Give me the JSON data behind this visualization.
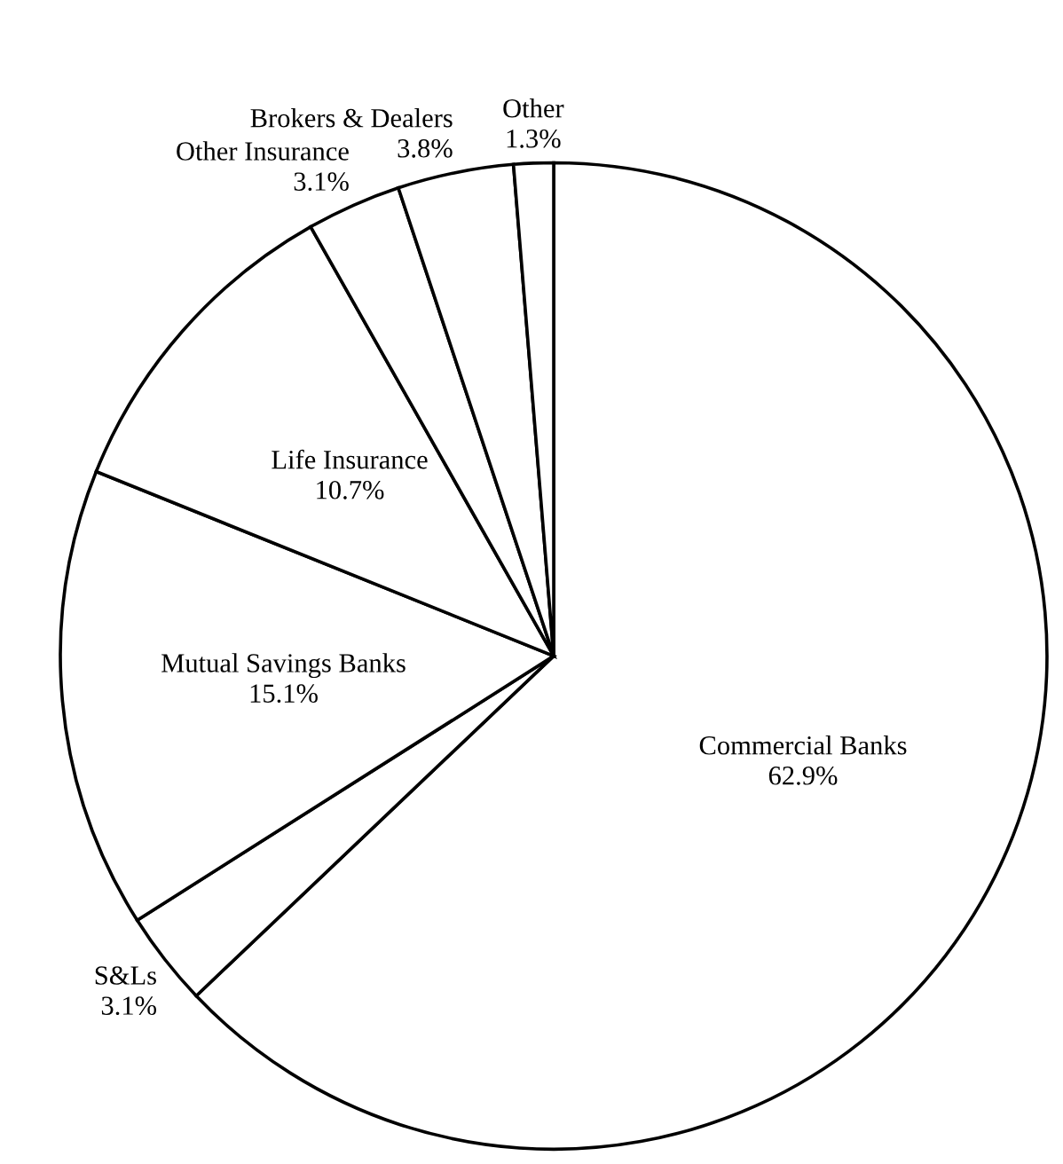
{
  "chart_data": {
    "type": "pie",
    "categories": [
      "Commercial Banks",
      "S&Ls",
      "Mutual Savings Banks",
      "Life Insurance",
      "Other Insurance",
      "Brokers & Dealers",
      "Other"
    ],
    "values": [
      62.9,
      3.1,
      15.1,
      10.7,
      3.1,
      3.8,
      1.3
    ],
    "colors": [
      "#ffffff",
      "#ffffff",
      "#ffffff",
      "#ffffff",
      "#ffffff",
      "#ffffff",
      "#ffffff"
    ],
    "value_labels": [
      "62.9%",
      "3.1%",
      "15.1%",
      "10.7%",
      "3.1%",
      "3.8%",
      "1.3%"
    ]
  }
}
